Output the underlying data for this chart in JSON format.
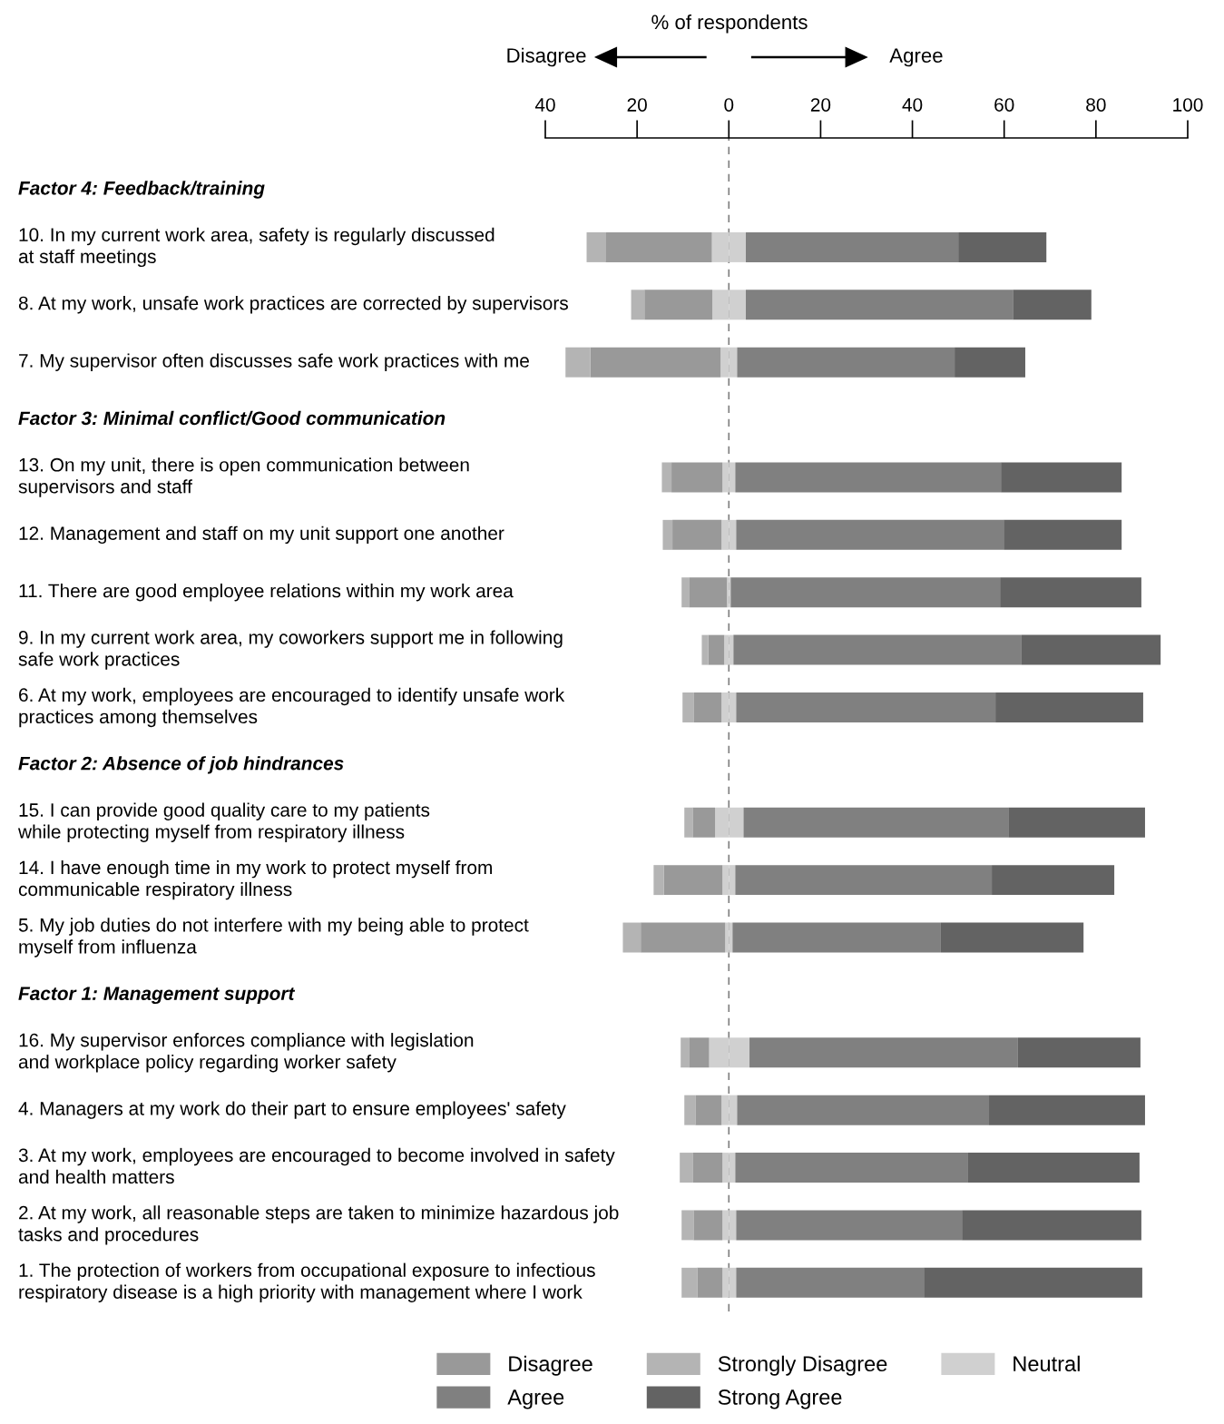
{
  "chart_data": {
    "type": "bar",
    "orientation": "horizontal",
    "stacked": true,
    "xlabel": "% of respondents",
    "annotations": [
      "Disagree",
      "Agree"
    ],
    "categories": [
      "Factor 4: Feedback/training",
      "10. In my current work area, safety is regularly discussed\nat staff meetings",
      "8. At my work, unsafe work practices are corrected by supervisors",
      "7. My supervisor often discusses safe work practices with me",
      "Factor 3: Minimal conflict/Good communication",
      "13. On my unit, there is open communication between\nsupervisors and staff",
      "12. Management and staff on my unit support one another",
      "11. There are good employee relations within my work area",
      "9. In my current work area, my coworkers support me in following\nsafe work practices",
      "6. At my work, employees are encouraged to identify unsafe work\npractices among themselves",
      "Factor 2: Absence of job hindrances",
      "15. I can provide good quality care to my patients\nwhile protecting myself from respiratory illness",
      "14. I have enough time in my work to protect myself from\ncommunicable respiratory illness",
      "5. My job duties do not interfere with my being able to protect\nmyself from influenza",
      "Factor 1: Management support",
      "16. My supervisor enforces compliance with legislation\nand workplace policy regarding worker safety",
      "4. Managers at my work do their part to ensure employees' safety",
      "3. At my work, employees are encouraged to become involved in safety\nand health matters",
      "2. At my work, all reasonable steps are taken to minimize hazardous job\ntasks and procedures",
      "1. The protection of workers from occupational exposure to infectious\nrespiratory disease is a high priority with management where I work"
    ],
    "series": [
      {
        "name": "Neutral",
        "color": "#d0d0d0",
        "values": [
          null,
          -3.7,
          -3.6,
          -1.8,
          null,
          -1.4,
          -1.6,
          -0.4,
          -1.0,
          -1.6,
          null,
          -3.0,
          -1.4,
          -0.8,
          null,
          -4.3,
          -1.6,
          -1.4,
          -1.4,
          -1.4
        ]
      },
      {
        "name": "Disagree",
        "color": "#999999",
        "values": [
          null,
          -23.2,
          -14.8,
          -28.4,
          null,
          -11.1,
          -10.7,
          -8.3,
          -3.5,
          -6.1,
          null,
          -4.9,
          -12.8,
          -18.4,
          null,
          -4.4,
          -5.7,
          -6.5,
          -6.3,
          -5.5
        ]
      },
      {
        "name": "Strongly Disagree",
        "color": "#b4b4b4",
        "values": [
          null,
          -4.1,
          -2.9,
          -5.4,
          null,
          -2.1,
          -2.1,
          -1.6,
          -1.4,
          -2.4,
          null,
          -1.8,
          -2.2,
          -3.9,
          null,
          -1.8,
          -2.4,
          -2.8,
          -2.6,
          -3.4
        ]
      },
      {
        "color": "#d0d0d0",
        "values": [
          null,
          3.7,
          3.7,
          1.8,
          null,
          1.4,
          1.6,
          0.4,
          1.0,
          1.6,
          null,
          3.2,
          1.4,
          0.8,
          null,
          4.5,
          1.8,
          1.4,
          1.6,
          1.6
        ]
      },
      {
        "name": "Agree",
        "color": "#808080",
        "values": [
          null,
          46.3,
          58.2,
          47.4,
          null,
          57.9,
          58.3,
          58.7,
          62.8,
          56.5,
          null,
          57.7,
          55.9,
          45.4,
          null,
          58.5,
          54.9,
          50.6,
          49.2,
          40.9
        ]
      },
      {
        "name": "Strong Agree",
        "color": "#636363",
        "values": [
          null,
          19.2,
          17.1,
          15.4,
          null,
          26.3,
          25.7,
          30.8,
          30.3,
          32.2,
          null,
          29.8,
          26.7,
          31.1,
          null,
          26.7,
          34.0,
          37.5,
          39.1,
          47.6
        ]
      }
    ],
    "xlim": [
      -40,
      100
    ],
    "xticks": [
      {
        "value": -40,
        "label": "40"
      },
      {
        "value": -20,
        "label": "20"
      },
      0,
      20,
      40,
      60,
      80,
      100
    ],
    "ref_lines": [
      {
        "axis": "x",
        "value": 0,
        "color": "#808080",
        "line_style": "dashed"
      }
    ],
    "grid": false,
    "legend": "bottom"
  }
}
